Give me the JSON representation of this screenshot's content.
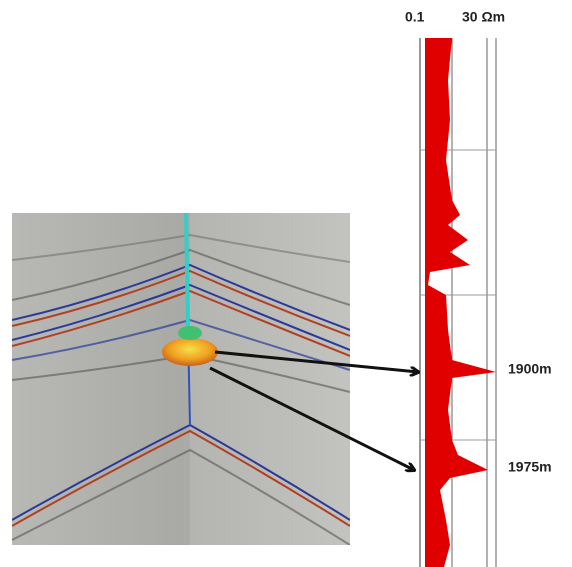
{
  "log_scale": {
    "min_label": "0.1",
    "max_label": "30 Ωm"
  },
  "depth_labels": [
    "1900m",
    "1975m"
  ]
}
